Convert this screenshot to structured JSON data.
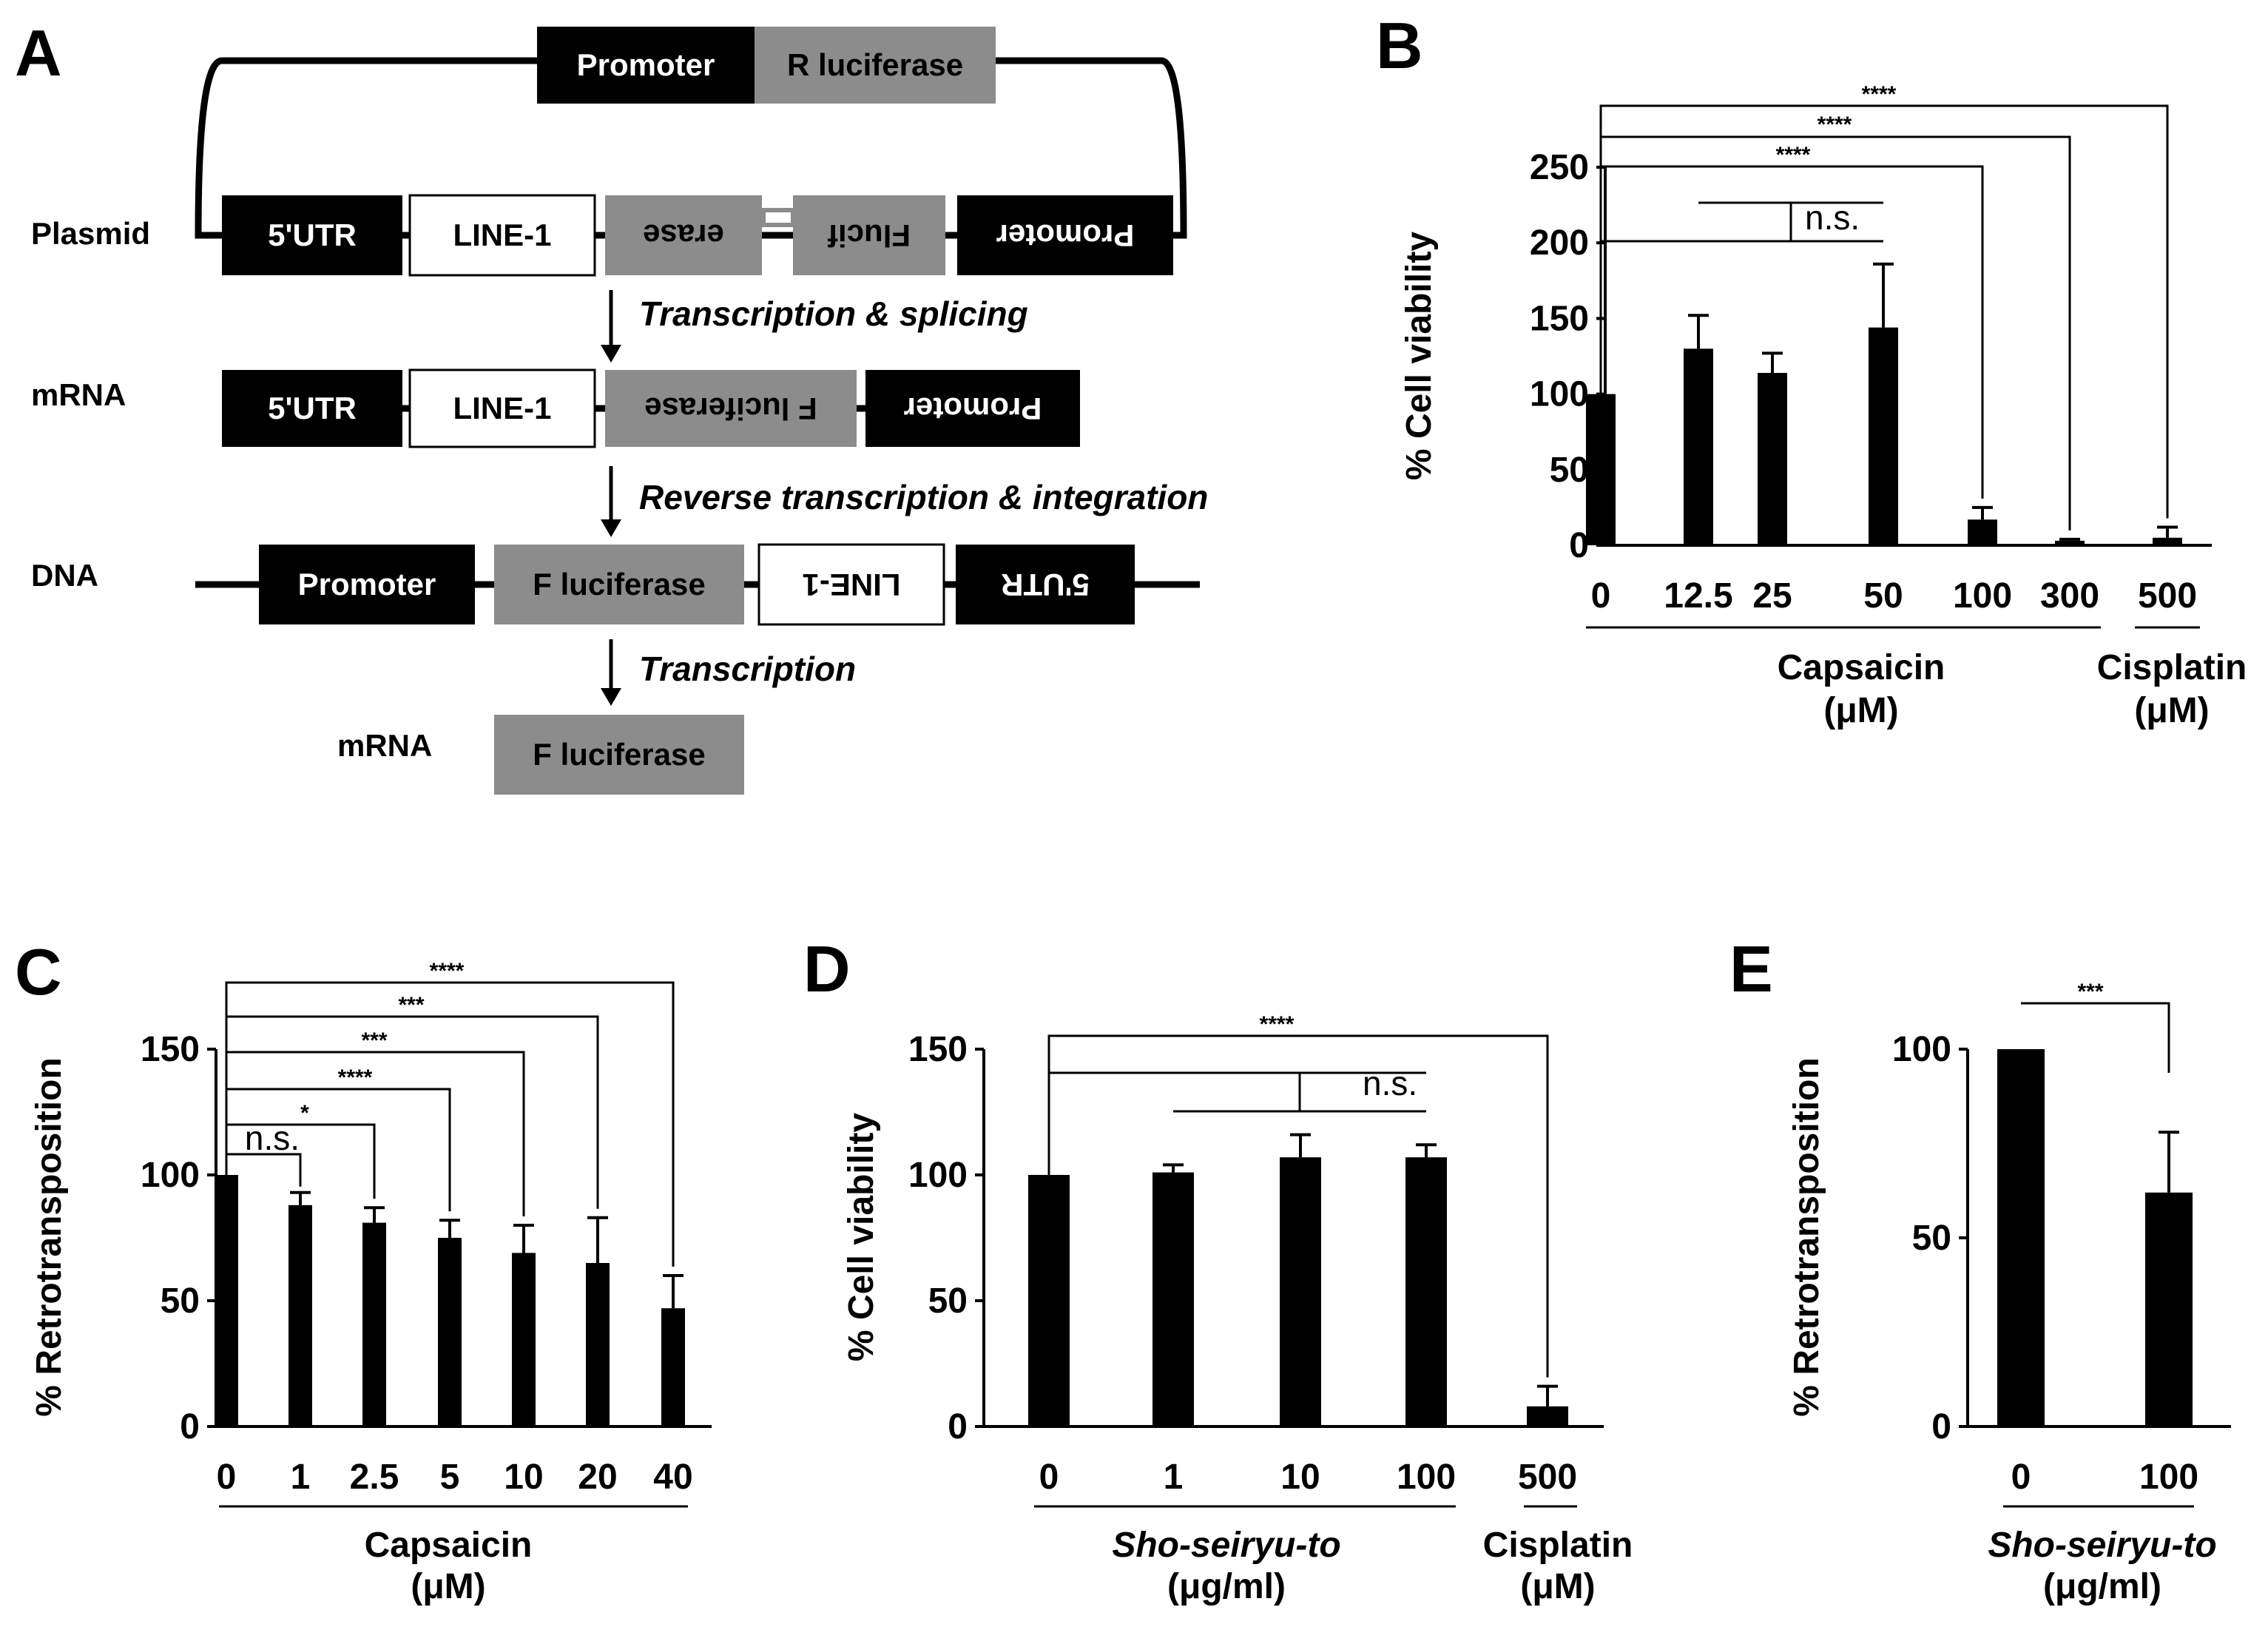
{
  "panels": {
    "a": "A",
    "b": "B",
    "c": "C",
    "d": "D",
    "e": "E"
  },
  "diagram": {
    "rows": {
      "plasmid": "Plasmid",
      "mrna": "mRNA",
      "dna": "DNA",
      "mrna2": "mRNA"
    },
    "boxes": {
      "promoter": "Promoter",
      "rluc": "R luciferase",
      "utr": "5'UTR",
      "line1": "LINE-1",
      "erase": "erase",
      "flucif": "Flucif",
      "fluc": "F luciferase"
    },
    "steps": {
      "s1": "Transcription & splicing",
      "s2": "Reverse transcription & integration",
      "s3": "Transcription"
    },
    "colors": {
      "dark": "#000000",
      "grey": "#8c8c8c",
      "light": "#ffffff"
    }
  },
  "chart_data": [
    {
      "panel": "B",
      "type": "bar",
      "ylabel": "% Cell viability",
      "ylim": [
        0,
        250
      ],
      "yticks": [
        0,
        50,
        100,
        150,
        200,
        250
      ],
      "categories": [
        "0",
        "12.5",
        "25",
        "50",
        "100",
        "300",
        "500"
      ],
      "values": [
        100,
        130,
        114,
        144,
        17,
        3,
        5
      ],
      "errors": [
        0,
        22,
        13,
        42,
        8,
        1,
        7
      ],
      "groups": [
        {
          "label": "Capsaicin",
          "unit": "(μM)"
        },
        {
          "label": "Cisplatin",
          "unit": "(μM)"
        }
      ],
      "significance": [
        "n.s.",
        "****",
        "****",
        "****"
      ]
    },
    {
      "panel": "C",
      "type": "bar",
      "ylabel": "% Retrotransposition",
      "ylim": [
        0,
        150
      ],
      "yticks": [
        0,
        50,
        100,
        150
      ],
      "categories": [
        "0",
        "1",
        "2.5",
        "5",
        "10",
        "20",
        "40"
      ],
      "values": [
        100,
        88,
        81,
        75,
        69,
        65,
        47
      ],
      "errors": [
        0,
        5,
        6,
        7,
        11,
        18,
        13
      ],
      "groups": [
        {
          "label": "Capsaicin",
          "unit": "(μM)"
        }
      ],
      "significance": [
        "n.s.",
        "*",
        "****",
        "***",
        "***",
        "****"
      ]
    },
    {
      "panel": "D",
      "type": "bar",
      "ylabel": "% Cell viability",
      "ylim": [
        0,
        150
      ],
      "yticks": [
        0,
        50,
        100,
        150
      ],
      "categories": [
        "0",
        "1",
        "10",
        "100",
        "500"
      ],
      "values": [
        100,
        101,
        107,
        107,
        8
      ],
      "errors": [
        0,
        3,
        9,
        5,
        8
      ],
      "groups": [
        {
          "label": "Sho-seiryu-to",
          "unit": "(μg/ml)"
        },
        {
          "label": "Cisplatin",
          "unit": "(μM)"
        }
      ],
      "significance": [
        "n.s.",
        "****"
      ]
    },
    {
      "panel": "E",
      "type": "bar",
      "ylabel": "% Retrotransposition",
      "ylim": [
        0,
        100
      ],
      "yticks": [
        0,
        50,
        100
      ],
      "categories": [
        "0",
        "100"
      ],
      "values": [
        100,
        62
      ],
      "errors": [
        0,
        16
      ],
      "groups": [
        {
          "label": "Sho-seiryu-to",
          "unit": "(μg/ml)"
        }
      ],
      "significance": [
        "***"
      ]
    }
  ]
}
